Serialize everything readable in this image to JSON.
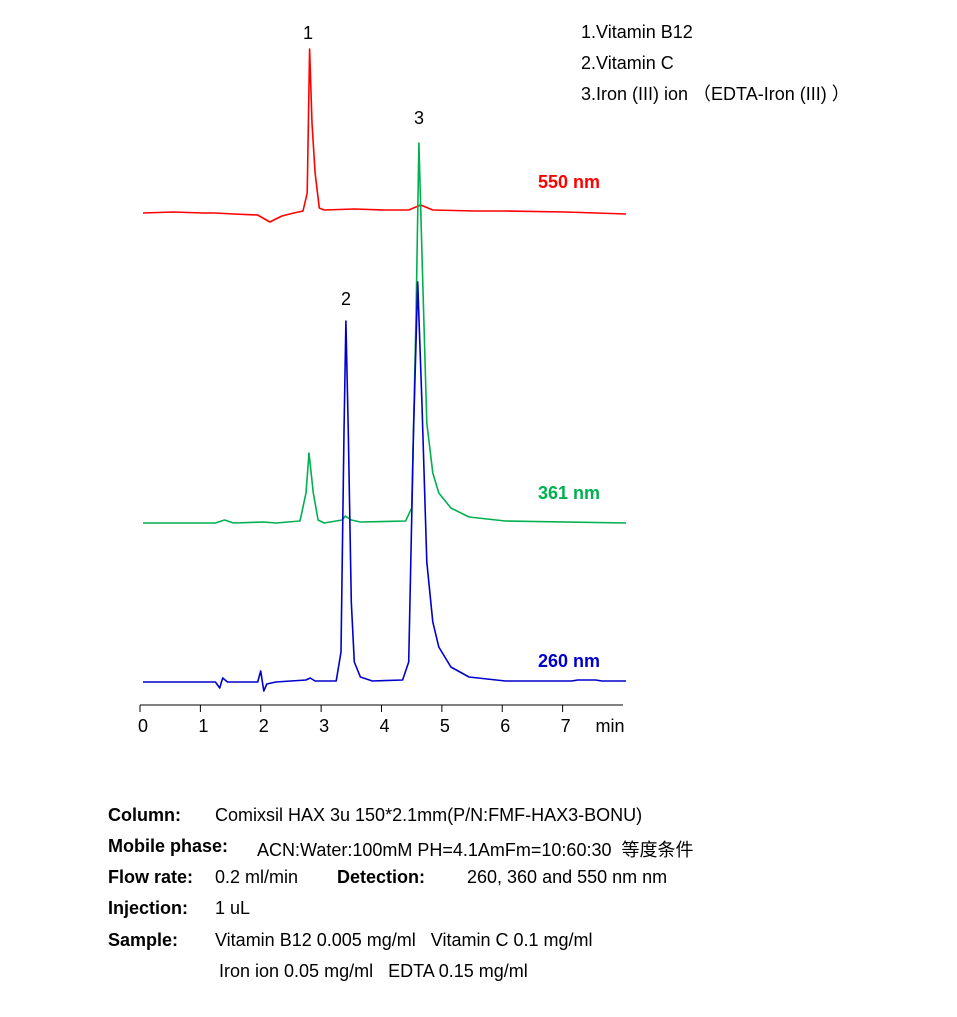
{
  "chart_data": {
    "type": "line",
    "x_label": "min",
    "xlim": [
      0,
      8
    ],
    "xticks": [
      0,
      1,
      2,
      3,
      4,
      5,
      6,
      7
    ],
    "annotations": [
      "1",
      "2",
      "3"
    ],
    "legend": [
      "1.Vitamin B12",
      "2.Vitamin C",
      "3.Iron (III) ion （EDTA-Iron (III) ）"
    ],
    "series": [
      {
        "name": "550 nm",
        "color": "#ff0000",
        "x": [
          0,
          0.5,
          1.0,
          1.2,
          1.5,
          1.9,
          2.1,
          2.3,
          2.5,
          2.65,
          2.72,
          2.76,
          2.8,
          2.85,
          2.92,
          3.0,
          3.5,
          4.0,
          4.4,
          4.6,
          4.8,
          5.5,
          6.0,
          7.0,
          8.0
        ],
        "values": [
          0,
          1,
          0,
          0,
          -1,
          -2,
          -9,
          -3,
          0,
          2,
          20,
          164,
          90,
          40,
          5,
          3,
          4,
          3,
          3,
          8,
          3,
          2,
          2,
          1,
          -1
        ]
      },
      {
        "name": "361 nm",
        "color": "#00b050",
        "x": [
          0,
          1.2,
          1.35,
          1.5,
          2.0,
          2.2,
          2.6,
          2.7,
          2.75,
          2.82,
          2.9,
          3.0,
          3.3,
          3.35,
          3.45,
          3.6,
          4.35,
          4.45,
          4.52,
          4.57,
          4.63,
          4.7,
          4.8,
          4.9,
          5.1,
          5.4,
          6.0,
          8.0
        ],
        "values": [
          0,
          0,
          3,
          0,
          1,
          0,
          2,
          30,
          70,
          30,
          3,
          0,
          3,
          7,
          3,
          1,
          2,
          15,
          200,
          380,
          250,
          100,
          50,
          30,
          15,
          6,
          2,
          0
        ]
      },
      {
        "name": "260 nm",
        "color": "#0000cc",
        "x": [
          0,
          1.2,
          1.27,
          1.32,
          1.4,
          1.9,
          1.95,
          2.0,
          2.05,
          2.2,
          2.7,
          2.77,
          2.85,
          3.2,
          3.28,
          3.33,
          3.36,
          3.4,
          3.45,
          3.5,
          3.6,
          3.8,
          4.3,
          4.4,
          4.48,
          4.55,
          4.62,
          4.7,
          4.8,
          4.9,
          5.1,
          5.4,
          6.0,
          7.1,
          7.2,
          7.5,
          7.6,
          8.0
        ],
        "values": [
          0,
          0,
          -6,
          4,
          0,
          0,
          11,
          -9,
          -2,
          0,
          2,
          4,
          1,
          1,
          30,
          250,
          361,
          250,
          80,
          20,
          5,
          1,
          2,
          20,
          250,
          400,
          280,
          120,
          60,
          35,
          15,
          5,
          1,
          1,
          2,
          2,
          1,
          1
        ]
      }
    ]
  },
  "conditions": [
    {
      "label": "Column:",
      "value": "Comixsil HAX 3u 150*2.1mm(P/N:FMF-HAX3-BONU)"
    },
    {
      "label": "Mobile phase:",
      "value": "ACN:Water:100mM PH=4.1AmFm=10:60:30  等度条件"
    },
    {
      "label": "Flow rate:",
      "value": "0.2 ml/min",
      "label2": "Detection:",
      "value2": "260, 360 and 550 nm nm"
    },
    {
      "label": "Injection:",
      "value": "1 uL"
    },
    {
      "label": "Sample:",
      "value": "Vitamin B12 0.005 mg/ml   Vitamin C 0.1 mg/ml",
      "value2": "Iron ion 0.05 mg/ml   EDTA 0.15 mg/ml"
    }
  ]
}
